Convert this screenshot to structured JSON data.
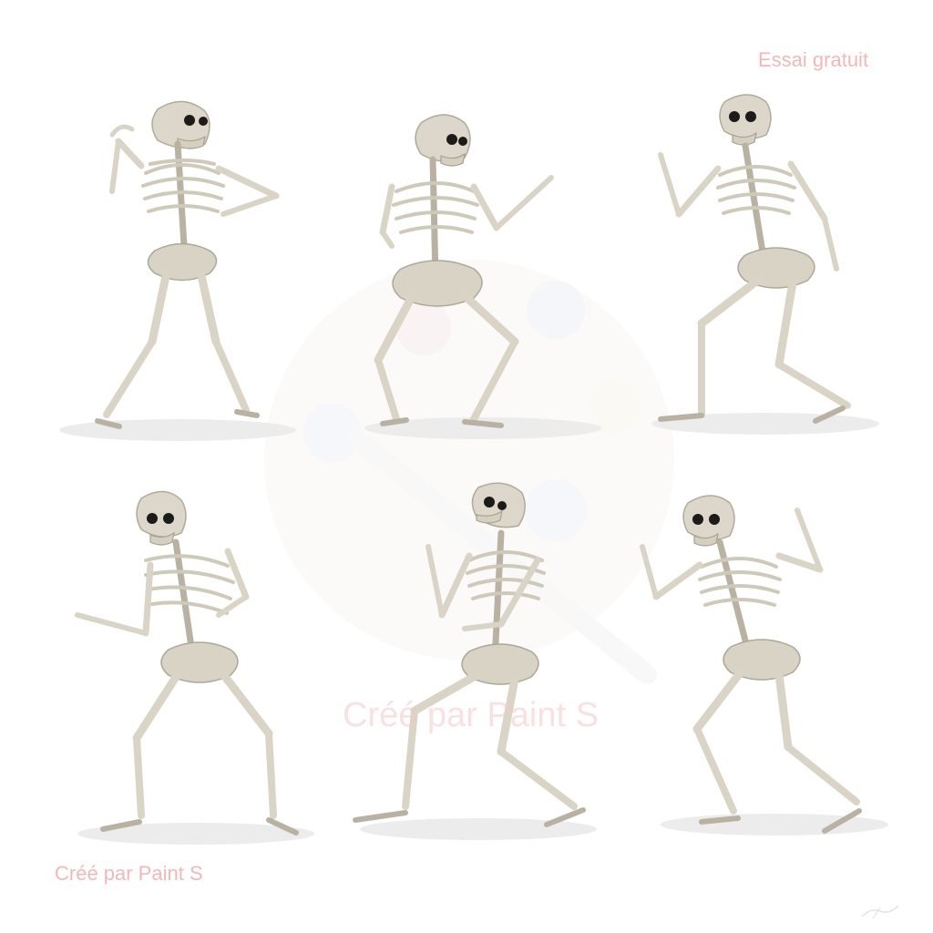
{
  "image": {
    "subject": "six dancing skeletons",
    "background_color": "#ffffff"
  },
  "watermarks": {
    "top_right": "Essai gratuit",
    "center": "Créé par Paint S",
    "bottom_left": "Créé par Paint S"
  },
  "colors": {
    "bone": "#d9d4c6",
    "watermark_text": "#f2b8b8"
  }
}
